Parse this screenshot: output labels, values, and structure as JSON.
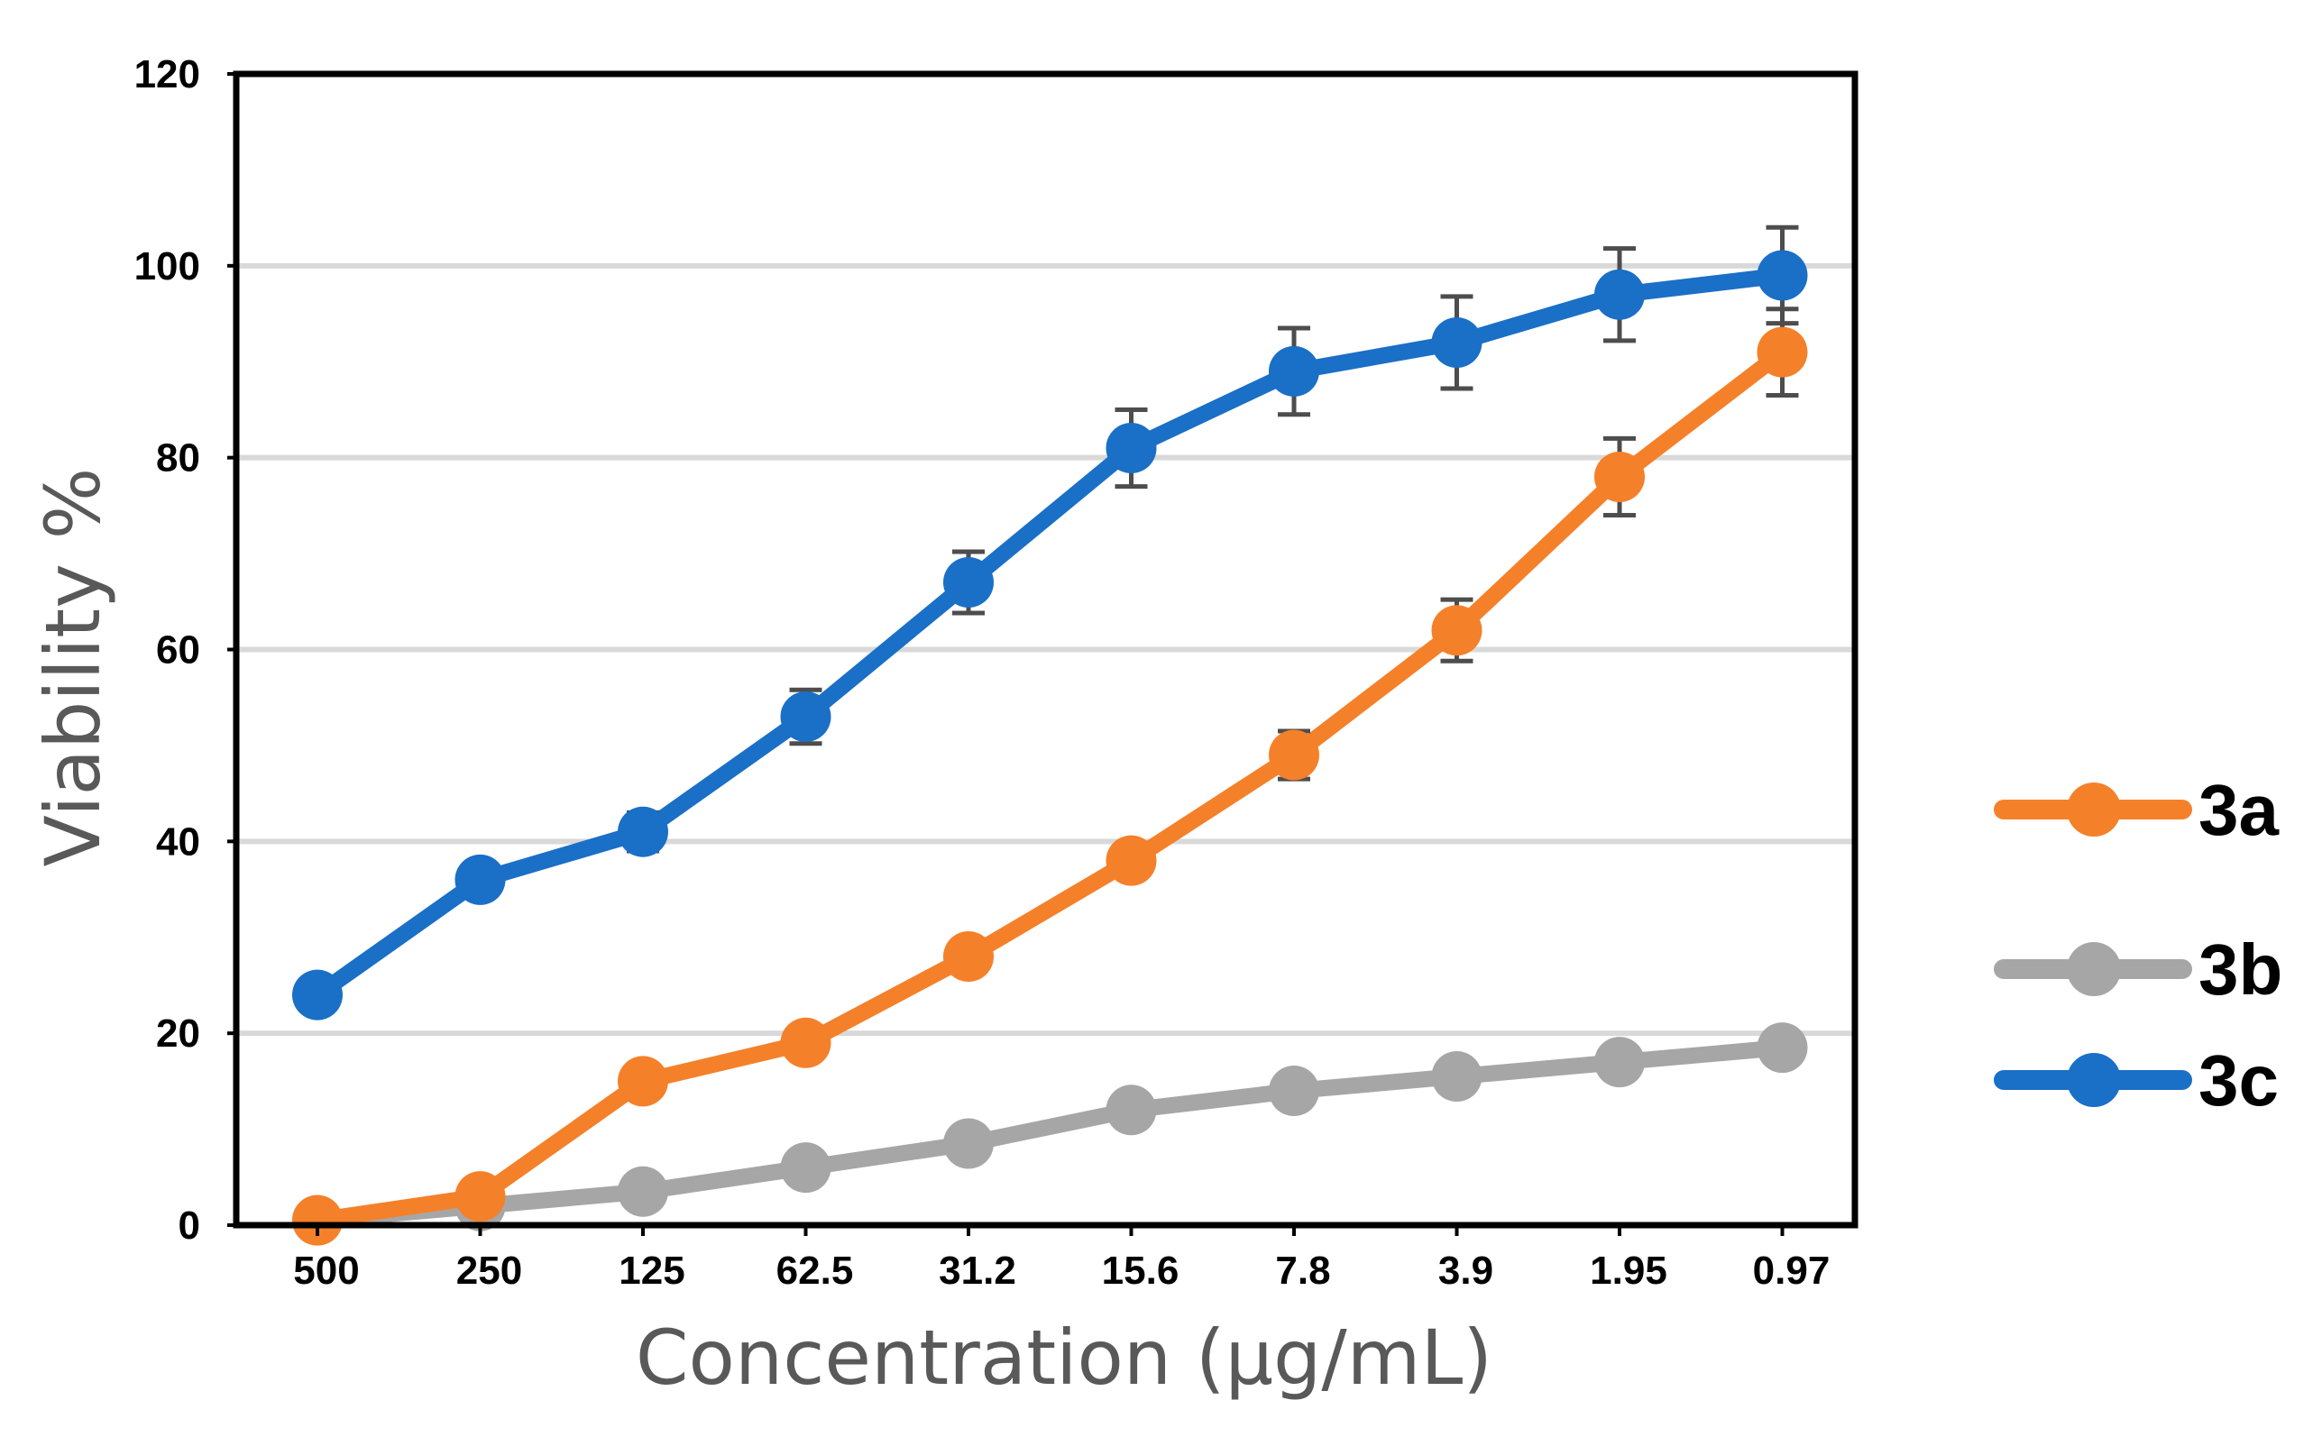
{
  "colors": {
    "3a": "#F5802A",
    "3b": "#A6A6A6",
    "3c": "#1A6FC7",
    "error_bar": "#4D4D4D",
    "grid": "#D9D9D9",
    "axis": "#000000"
  },
  "chart_data": {
    "type": "line",
    "title": "",
    "xlabel": "Concentration (µg/mL)",
    "ylabel": "Viability %",
    "categories": [
      "500",
      "250",
      "125",
      "62.5",
      "31.2",
      "15.6",
      "7.8",
      "3.9",
      "1.95",
      "0.97"
    ],
    "ylim": [
      0,
      120
    ],
    "yticks": [
      0,
      20,
      40,
      60,
      80,
      100,
      120
    ],
    "grid": true,
    "legend_position": "right",
    "series": [
      {
        "name": "3a",
        "color_key": "3a",
        "values": [
          0.5,
          3,
          15,
          19,
          28,
          38,
          49,
          62,
          78,
          91
        ],
        "errors": [
          0,
          0,
          0,
          0,
          0,
          0,
          2.5,
          3.2,
          4,
          4.5
        ]
      },
      {
        "name": "3b",
        "color_key": "3b",
        "values": [
          0.5,
          2,
          3.5,
          6,
          8.5,
          12,
          14,
          15.5,
          17,
          18.5
        ],
        "errors": [
          0,
          0,
          0,
          0,
          0,
          0,
          0,
          0,
          0,
          0
        ]
      },
      {
        "name": "3c",
        "color_key": "3c",
        "values": [
          24,
          36,
          41,
          53,
          67,
          81,
          89,
          92,
          97,
          99
        ],
        "errors": [
          0,
          0,
          2,
          2.8,
          3.2,
          4,
          4.5,
          4.8,
          4.8,
          5
        ]
      }
    ]
  }
}
